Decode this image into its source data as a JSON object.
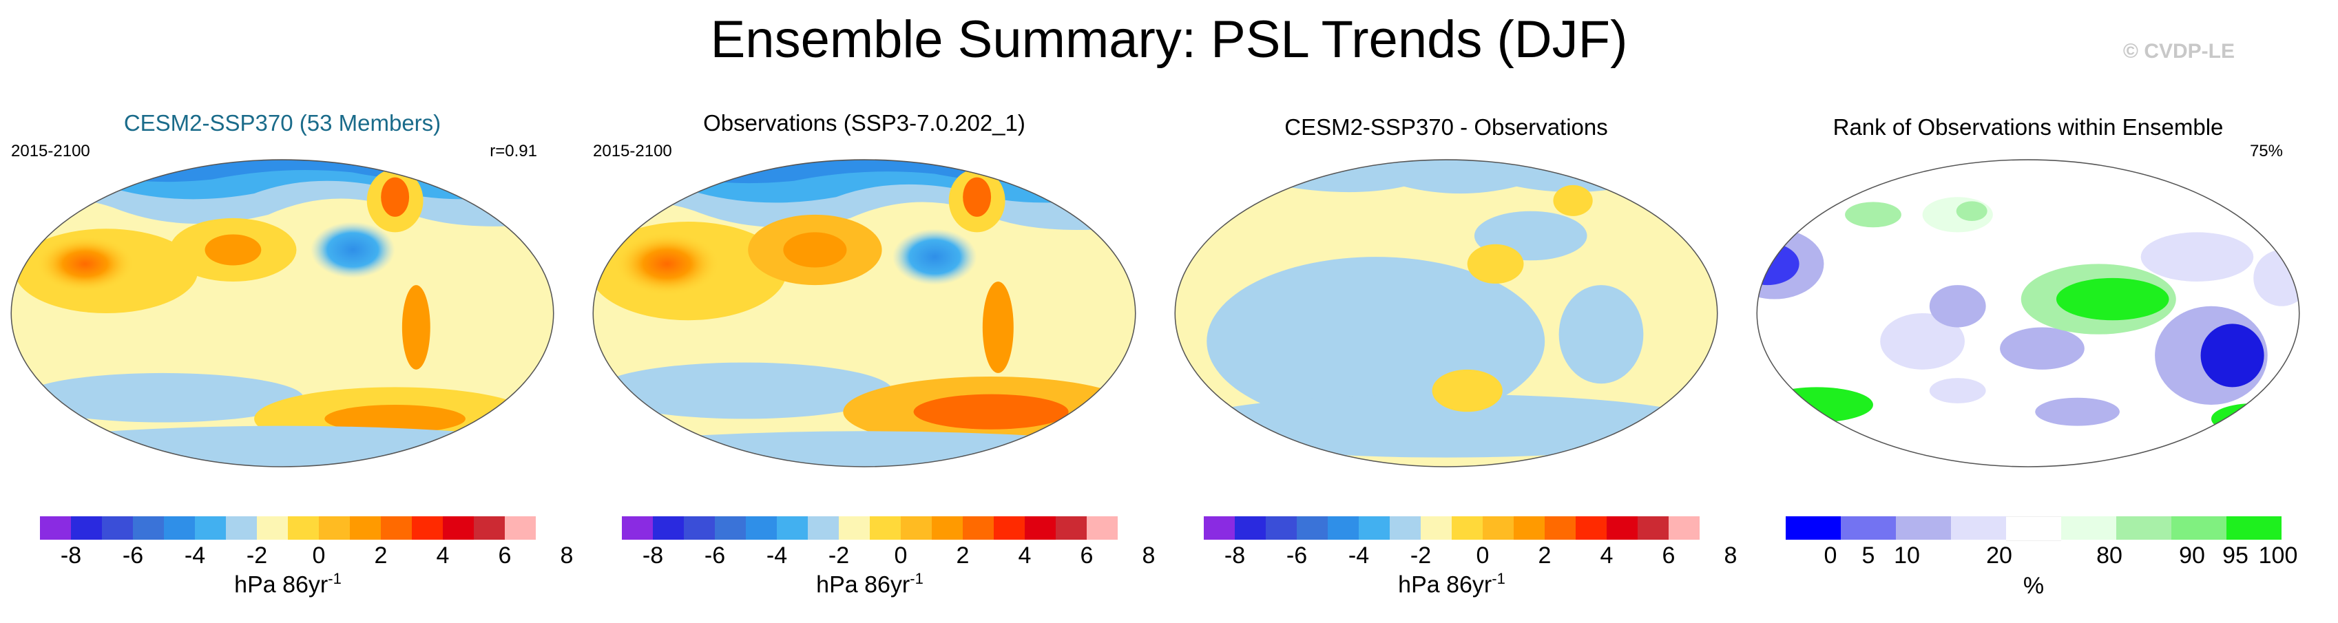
{
  "title": "Ensemble Summary: PSL Trends (DJF)",
  "watermark": "© CVDP-LE",
  "colors": {
    "title_blue": "#1a6b8a",
    "trend_scale": [
      "#8a2be2",
      "#2a2adf",
      "#3a4ed8",
      "#3a73d8",
      "#2f8fe8",
      "#42b0f0",
      "#a9d3ee",
      "#fdf6b3",
      "#ffd93a",
      "#ffbb22",
      "#ff9a00",
      "#ff6a00",
      "#ff2a00",
      "#e00010",
      "#cc2a33",
      "#ffb3b3"
    ],
    "rank_scale": [
      "#0000ff",
      "#7373f2",
      "#b3b3ee",
      "#e0e0fb",
      "#ffffff",
      "#e6ffe6",
      "#a8f0a8",
      "#80f080",
      "#1ef01e"
    ]
  },
  "panels": [
    {
      "title": "CESM2-SSP370 (53 Members)",
      "period": "2015-2100",
      "stat": "r=0.91",
      "colorbar": {
        "ticks": [
          "-8",
          "-6",
          "-4",
          "-2",
          "0",
          "2",
          "4",
          "6",
          "8"
        ],
        "unit": "hPa 86yr",
        "unit_exp": "-1"
      }
    },
    {
      "title": "Observations (SSP3-7.0.202_1)",
      "period": "2015-2100",
      "stat": "",
      "colorbar": {
        "ticks": [
          "-8",
          "-6",
          "-4",
          "-2",
          "0",
          "2",
          "4",
          "6",
          "8"
        ],
        "unit": "hPa 86yr",
        "unit_exp": "-1"
      }
    },
    {
      "title": "CESM2-SSP370 - Observations",
      "period": "",
      "stat": "",
      "colorbar": {
        "ticks": [
          "-8",
          "-6",
          "-4",
          "-2",
          "0",
          "2",
          "4",
          "6",
          "8"
        ],
        "unit": "hPa 86yr",
        "unit_exp": "-1"
      }
    },
    {
      "title": "Rank of Observations within Ensemble",
      "period": "",
      "stat": "75%",
      "colorbar": {
        "ticks": [
          "0",
          "5",
          "10",
          "20",
          "80",
          "90",
          "95",
          "100"
        ],
        "unit": "%",
        "unit_exp": ""
      }
    }
  ]
}
